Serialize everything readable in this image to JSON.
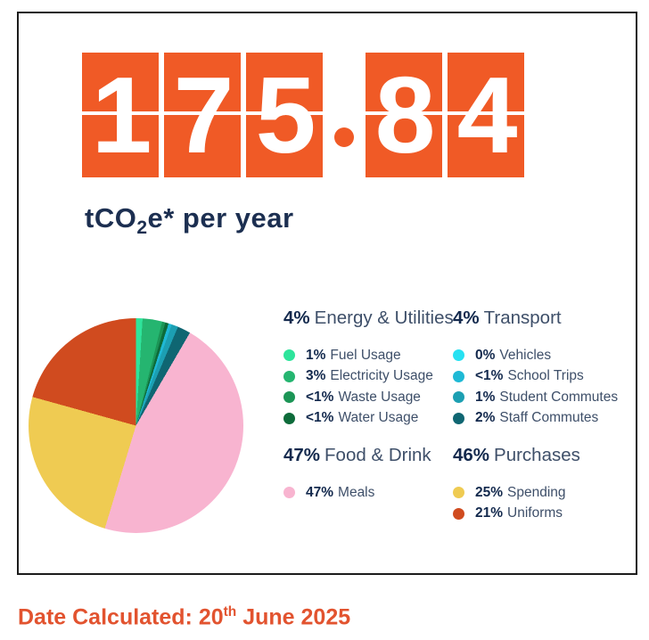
{
  "display": {
    "digits": [
      "1",
      "7",
      "5",
      "8",
      "4"
    ],
    "value": "175.84",
    "unit_pre": "tCO",
    "unit_sub": "2",
    "unit_post": "e* per year"
  },
  "legend": {
    "groups": [
      {
        "pct": "4%",
        "name": "Energy & Utilities",
        "items": [
          {
            "pct": "1%",
            "label": "Fuel Usage",
            "color": "#2EE49B"
          },
          {
            "pct": "3%",
            "label": "Electricity Usage",
            "color": "#25B570"
          },
          {
            "pct": "<1%",
            "label": "Waste Usage",
            "color": "#1C9556"
          },
          {
            "pct": "<1%",
            "label": "Water Usage",
            "color": "#0D6B3A"
          }
        ]
      },
      {
        "pct": "4%",
        "name": "Transport",
        "items": [
          {
            "pct": "0%",
            "label": "Vehicles",
            "color": "#27E1F2"
          },
          {
            "pct": "<1%",
            "label": "School Trips",
            "color": "#1FB9D5"
          },
          {
            "pct": "1%",
            "label": "Student Commutes",
            "color": "#1C9FB2"
          },
          {
            "pct": "2%",
            "label": "Staff Commutes",
            "color": "#0F6672"
          }
        ]
      },
      {
        "pct": "47%",
        "name": "Food & Drink",
        "items": [
          {
            "pct": "47%",
            "label": "Meals",
            "color": "#F8B4D0"
          }
        ]
      },
      {
        "pct": "46%",
        "name": "Purchases",
        "items": [
          {
            "pct": "25%",
            "label": "Spending",
            "color": "#EFCB52"
          },
          {
            "pct": "21%",
            "label": "Uniforms",
            "color": "#D04B1F"
          }
        ]
      }
    ]
  },
  "footer": {
    "date_prefix": "Date Calculated: 20",
    "date_sup": "th",
    "date_suffix": " June 2025"
  },
  "colors": {
    "accent_orange": "#F05A26",
    "navy": "#1C2F51",
    "date_orange": "#E2532F"
  },
  "chart_data": {
    "type": "pie",
    "title": "175.84 tCO2e* per year",
    "headline_value": 175.84,
    "unit": "tCO2e per year",
    "start_angle_deg": 0,
    "direction": "clockwise",
    "legend_position": "right",
    "slices": [
      {
        "group": "Energy & Utilities",
        "label": "Fuel Usage",
        "pct_label": "1%",
        "value": 1,
        "color": "#2EE49B"
      },
      {
        "group": "Energy & Utilities",
        "label": "Electricity Usage",
        "pct_label": "3%",
        "value": 3,
        "color": "#25B570"
      },
      {
        "group": "Energy & Utilities",
        "label": "Waste Usage",
        "pct_label": "<1%",
        "value": 0.5,
        "color": "#1C9556"
      },
      {
        "group": "Energy & Utilities",
        "label": "Water Usage",
        "pct_label": "<1%",
        "value": 0.5,
        "color": "#0D6B3A"
      },
      {
        "group": "Transport",
        "label": "Vehicles",
        "pct_label": "0%",
        "value": 0,
        "color": "#27E1F2"
      },
      {
        "group": "Transport",
        "label": "School Trips",
        "pct_label": "<1%",
        "value": 0.5,
        "color": "#1FB9D5"
      },
      {
        "group": "Transport",
        "label": "Student Commutes",
        "pct_label": "1%",
        "value": 1,
        "color": "#1C9FB2"
      },
      {
        "group": "Transport",
        "label": "Staff Commutes",
        "pct_label": "2%",
        "value": 2,
        "color": "#0F6672"
      },
      {
        "group": "Food & Drink",
        "label": "Meals",
        "pct_label": "47%",
        "value": 47,
        "color": "#F8B4D0"
      },
      {
        "group": "Purchases",
        "label": "Spending",
        "pct_label": "25%",
        "value": 25,
        "color": "#EFCB52"
      },
      {
        "group": "Purchases",
        "label": "Uniforms",
        "pct_label": "21%",
        "value": 21,
        "color": "#D04B1F"
      }
    ],
    "group_totals": [
      {
        "name": "Energy & Utilities",
        "pct_label": "4%"
      },
      {
        "name": "Transport",
        "pct_label": "4%"
      },
      {
        "name": "Food & Drink",
        "pct_label": "47%"
      },
      {
        "name": "Purchases",
        "pct_label": "46%"
      }
    ]
  }
}
